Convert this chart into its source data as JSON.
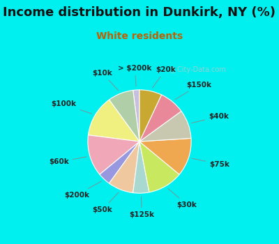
{
  "title": "Income distribution in Dunkirk, NY (%)",
  "subtitle": "White residents",
  "labels": [
    "> $200k",
    "$10k",
    "$100k",
    "$60k",
    "$200k",
    "$50k",
    "$125k",
    "$30k",
    "$75k",
    "$40k",
    "$150k",
    "$20k"
  ],
  "values": [
    2,
    8,
    13,
    13,
    4,
    8,
    5,
    11,
    12,
    9,
    8,
    7
  ],
  "colors": [
    "#c8bedd",
    "#b0cfa8",
    "#f0f080",
    "#f0a8b8",
    "#9898e0",
    "#f0c8a0",
    "#a8d8d0",
    "#c8e860",
    "#f0a850",
    "#c8c8b0",
    "#e88898",
    "#c8a830"
  ],
  "bg_cyan": "#00f0f0",
  "bg_chart": "#e8f5ec",
  "title_color": "#111111",
  "subtitle_color": "#c06000",
  "title_fontsize": 13,
  "subtitle_fontsize": 10,
  "label_fontsize": 7.5,
  "startangle": 90
}
